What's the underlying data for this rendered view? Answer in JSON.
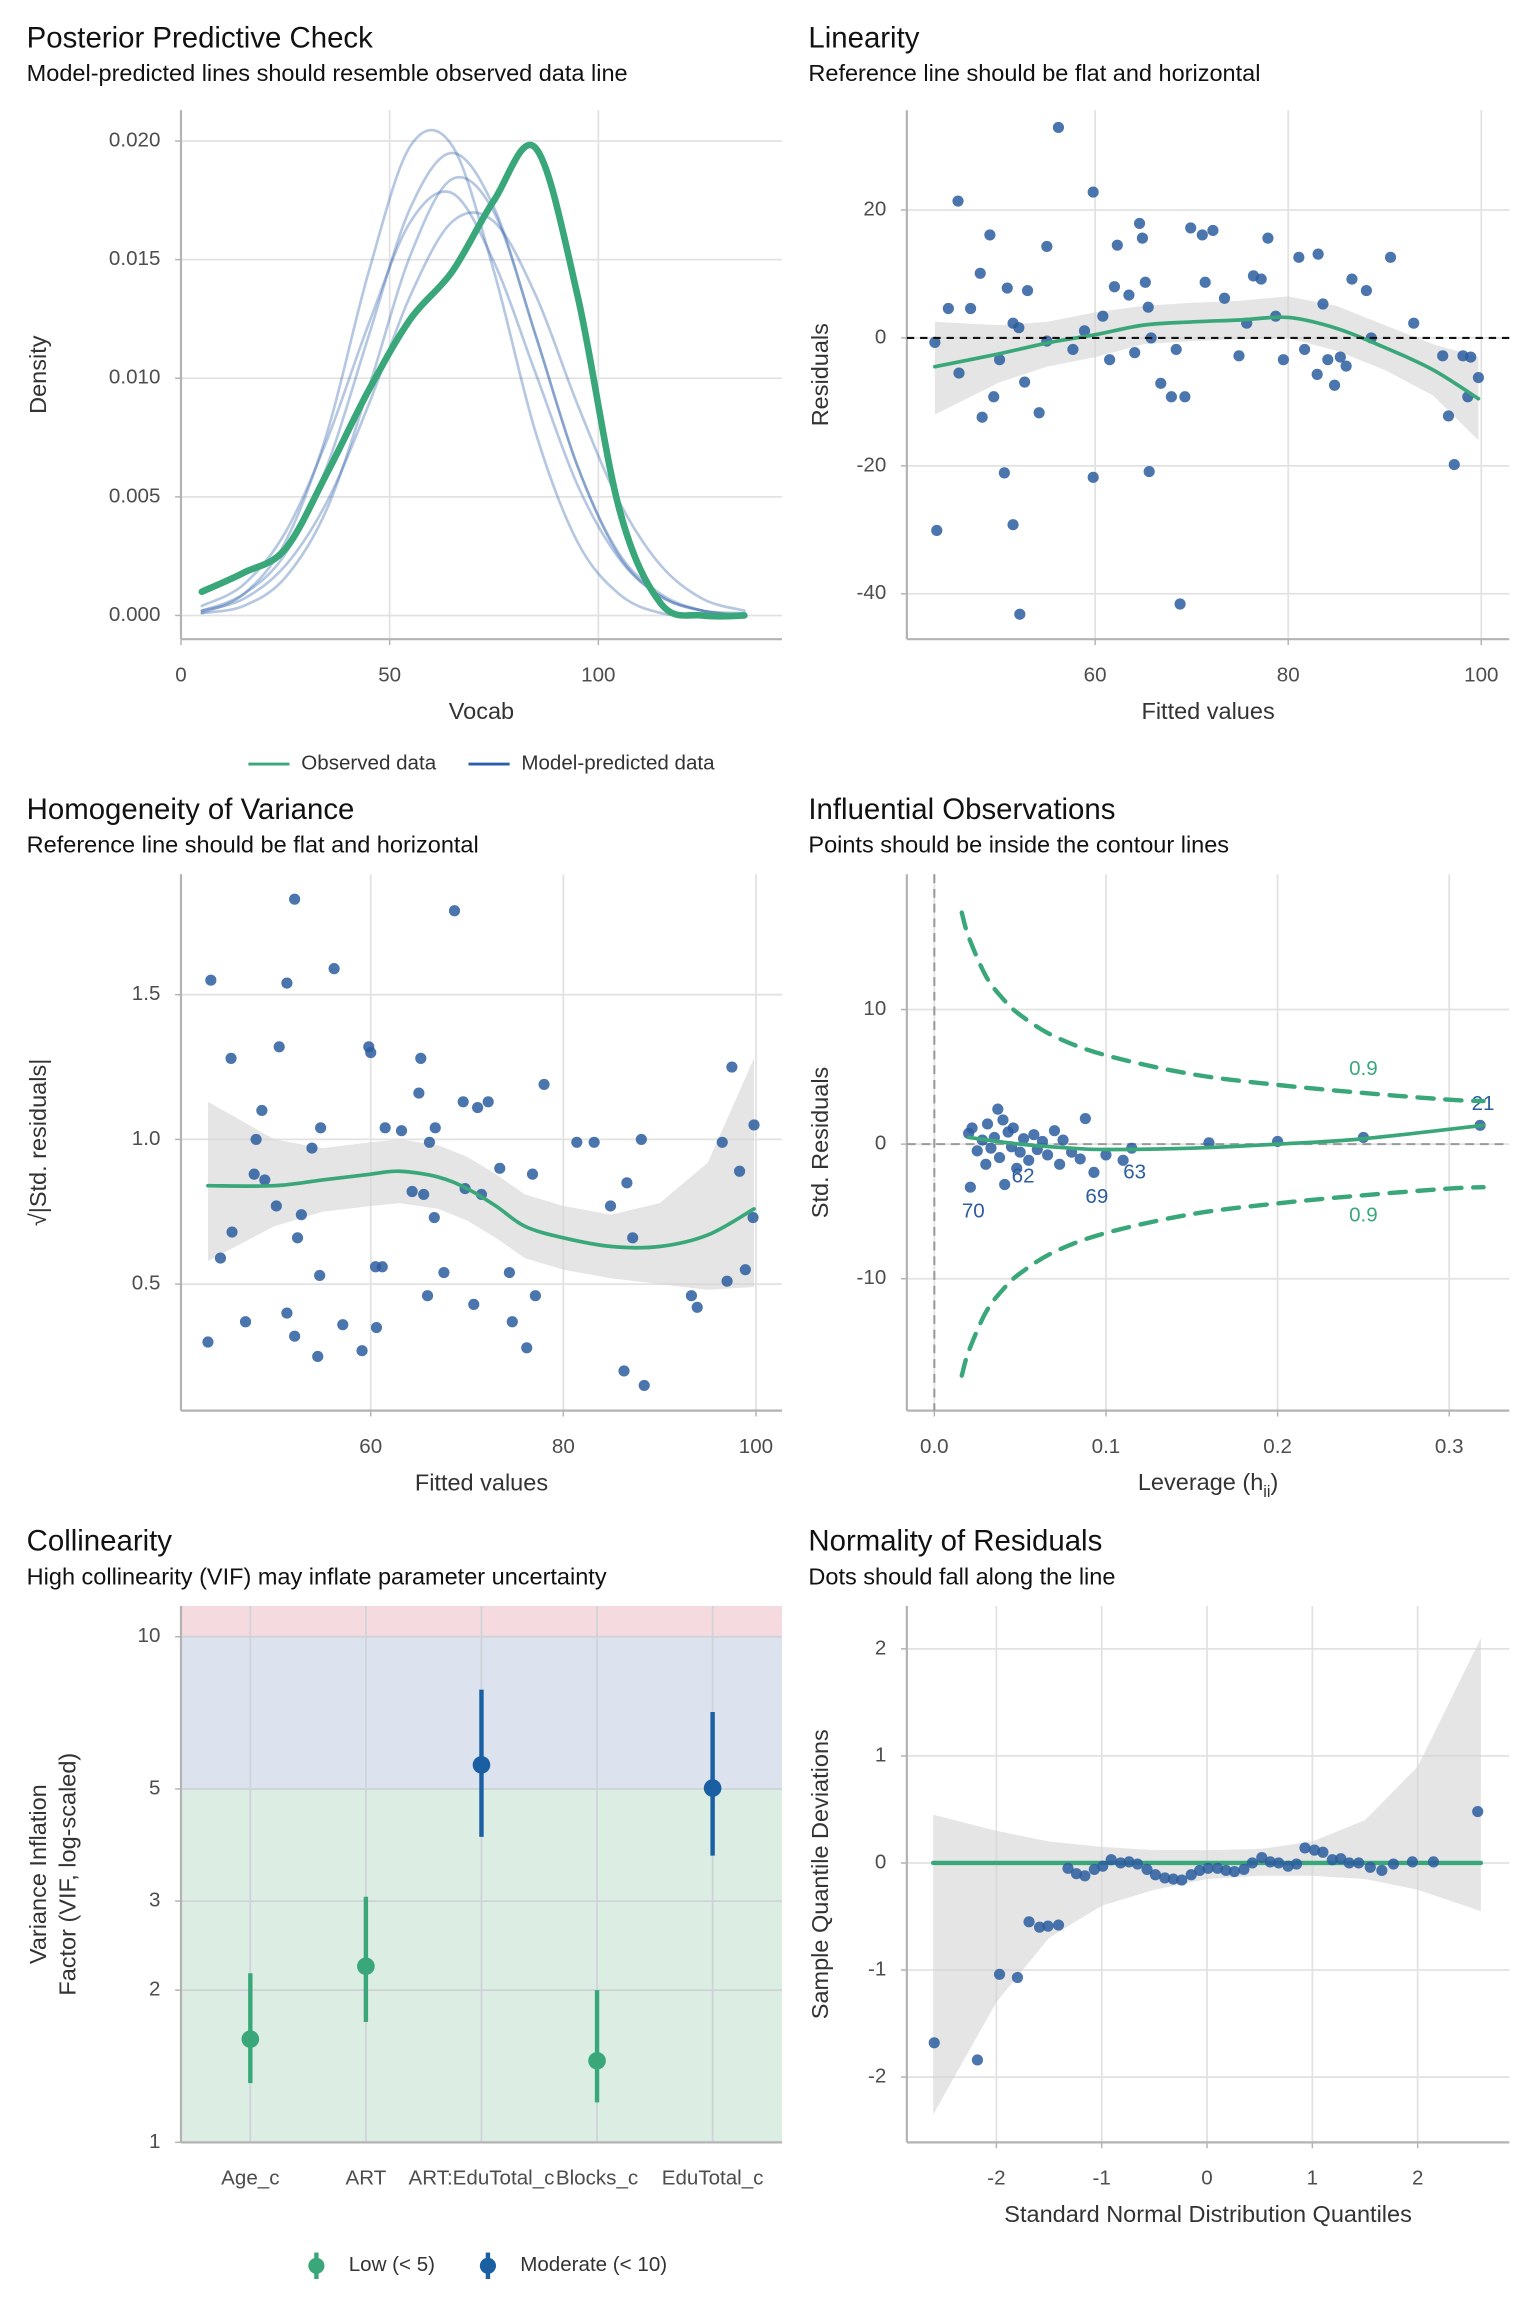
{
  "chart_data": [
    {
      "type": "density",
      "title": "Posterior Predictive Check",
      "subtitle": "Model-predicted lines should resemble observed data line",
      "x_label": "Vocab",
      "y_label": "Density",
      "xlim": [
        0,
        144
      ],
      "ylim": [
        -0.001,
        0.0213
      ],
      "xticks": [
        0,
        50,
        100
      ],
      "yticks": [
        {
          "value": 0,
          "label": "0.000"
        },
        {
          "value": 0.005,
          "label": "0.005"
        },
        {
          "value": 0.01,
          "label": "0.010"
        },
        {
          "value": 0.015,
          "label": "0.015"
        },
        {
          "value": 0.02,
          "label": "0.020"
        }
      ],
      "grid": true,
      "legend": "bottom",
      "x": [
        5,
        15,
        25,
        35,
        45,
        55,
        65,
        75,
        85,
        95,
        105,
        115,
        125,
        135
      ],
      "series": [
        {
          "name": "Observed data",
          "color": "#3aa77a",
          "values": [
            0.001,
            0.0018,
            0.0028,
            0.006,
            0.0095,
            0.0125,
            0.0145,
            0.0175,
            0.0197,
            0.0135,
            0.0045,
            0.0005,
            0,
            0
          ]
        },
        {
          "name": "Model-predicted data",
          "color": "#2b5ea8",
          "draws": [
            [
              0.0002,
              0.0009,
              0.0026,
              0.0063,
              0.0118,
              0.0172,
              0.0195,
              0.0172,
              0.0118,
              0.0063,
              0.0026,
              0.0009,
              0.0002,
              0
            ],
            [
              0.0001,
              0.0009,
              0.0031,
              0.0077,
              0.0145,
              0.0198,
              0.0198,
              0.0145,
              0.0077,
              0.0031,
              0.0009,
              0.0001,
              0,
              0
            ],
            [
              0.0002,
              0.0007,
              0.0021,
              0.0048,
              0.0089,
              0.0135,
              0.0166,
              0.0166,
              0.0135,
              0.0089,
              0.0048,
              0.0021,
              0.0007,
              0.0002
            ],
            [
              0.0001,
              0.0004,
              0.0016,
              0.0045,
              0.0096,
              0.0152,
              0.0184,
              0.017,
              0.0118,
              0.0063,
              0.0025,
              0.0008,
              0.0002,
              0
            ],
            [
              0.0004,
              0.0013,
              0.0035,
              0.0074,
              0.0123,
              0.0166,
              0.0178,
              0.0149,
              0.0102,
              0.0055,
              0.0024,
              0.0008,
              0.0002,
              0.0001
            ]
          ]
        }
      ]
    },
    {
      "type": "scatter",
      "title": "Linearity",
      "subtitle": "Reference line should be flat and horizontal",
      "x_label": "Fitted values",
      "y_label": "Residuals",
      "xlim": [
        40.5,
        102.9
      ],
      "ylim": [
        -47.1,
        35.6
      ],
      "xticks": [
        60,
        80,
        100
      ],
      "yticks": [
        -40,
        -20,
        0,
        20
      ],
      "grid": true,
      "hline": 0,
      "point_color": "#2c5d9f",
      "smooth_color": "#3aa77a",
      "x": [
        43.4,
        43.6,
        44.8,
        45.8,
        45.9,
        47.1,
        48.1,
        48.3,
        49.1,
        49.5,
        50.1,
        50.6,
        50.9,
        51.5,
        51.5,
        52.1,
        52.2,
        52.7,
        53.0,
        54.2,
        55.0,
        55.0,
        56.2,
        57.7,
        58.9,
        59.8,
        59.8,
        60.8,
        61.5,
        62.0,
        62.3,
        63.5,
        64.1,
        64.6,
        64.9,
        65.2,
        65.5,
        65.6,
        65.8,
        66.8,
        67.9,
        68.4,
        68.8,
        69.3,
        69.9,
        71.1,
        71.4,
        72.2,
        73.4,
        74.9,
        75.7,
        76.4,
        77.2,
        77.9,
        78.7,
        79.5,
        81.1,
        81.7,
        83.0,
        83.6,
        84.1,
        84.8,
        85.4,
        86.0,
        86.6,
        88.1,
        88.6,
        93.0,
        96.0,
        96.6,
        97.2,
        98.1,
        98.6,
        98.9,
        99.7,
        83.1,
        90.6
      ],
      "values": [
        -0.7,
        -30.1,
        4.6,
        21.4,
        -5.5,
        4.6,
        10.1,
        -12.4,
        16.1,
        -9.2,
        -3.4,
        -21.1,
        7.8,
        2.3,
        -29.2,
        1.6,
        -43.2,
        -6.9,
        7.4,
        -11.7,
        14.3,
        -0.5,
        32.9,
        -1.8,
        1.1,
        22.8,
        -21.8,
        3.4,
        -3.4,
        8.0,
        14.5,
        6.7,
        -2.3,
        17.9,
        15.6,
        8.7,
        4.8,
        -20.9,
        0.0,
        -7.1,
        -9.2,
        -1.8,
        -41.6,
        -9.2,
        17.2,
        16.1,
        8.7,
        16.8,
        6.2,
        -2.8,
        2.3,
        9.7,
        9.2,
        15.6,
        3.4,
        -3.4,
        12.6,
        -1.8,
        -5.7,
        5.3,
        -3.4,
        -7.4,
        -3.0,
        -4.4,
        9.2,
        7.4,
        0.0,
        2.3,
        -2.8,
        -12.2,
        -19.8,
        -2.8,
        -9.2,
        -3.0,
        -6.2,
        13.1,
        12.6
      ],
      "smooth": {
        "x": [
          43.4,
          50,
          55,
          60,
          65,
          70,
          75,
          80,
          85,
          90,
          95,
          99.7
        ],
        "values": [
          -4.5,
          -2.5,
          -0.8,
          0.5,
          2,
          2.5,
          2.8,
          3.2,
          1.5,
          -1.5,
          -5,
          -9.5
        ],
        "lower": [
          -12,
          -7,
          -4.5,
          -3,
          -1,
          -0.5,
          -0.2,
          0,
          -2,
          -5,
          -9,
          -16
        ],
        "upper": [
          2.5,
          2,
          2.5,
          4,
          5,
          5.5,
          5.8,
          6.5,
          5,
          2,
          -1,
          -3
        ]
      }
    },
    {
      "type": "scatter",
      "title": "Homogeneity of Variance",
      "subtitle": "Reference line should be flat and horizontal",
      "x_label": "Fitted values",
      "y_label": "√|Std. residuals|",
      "xlim": [
        40.3,
        102.7
      ],
      "ylim": [
        0.063,
        1.916
      ],
      "xticks": [
        60,
        80,
        100
      ],
      "yticks": [
        0.5,
        {
          "value": 1,
          "label": "1.0"
        },
        1.5
      ],
      "grid": true,
      "point_color": "#2c5d9f",
      "smooth_color": "#3aa77a",
      "x": [
        43.1,
        44.4,
        43.4,
        45.5,
        45.6,
        47.0,
        47.9,
        48.1,
        48.7,
        49.0,
        50.2,
        50.5,
        51.3,
        51.3,
        52.1,
        52.1,
        52.4,
        52.8,
        53.9,
        54.5,
        54.8,
        54.7,
        56.2,
        57.1,
        59.1,
        59.8,
        60.0,
        60.5,
        60.6,
        61.2,
        61.5,
        63.2,
        64.3,
        65.0,
        65.2,
        65.5,
        65.9,
        66.1,
        66.6,
        66.7,
        67.6,
        68.7,
        69.6,
        69.8,
        70.7,
        71.1,
        71.5,
        72.2,
        74.4,
        74.7,
        76.2,
        76.8,
        77.1,
        78.0,
        81.4,
        83.2,
        84.9,
        86.3,
        86.6,
        87.2,
        88.4,
        93.3,
        93.9,
        96.5,
        97.0,
        97.5,
        98.3,
        98.9,
        99.7,
        99.8,
        88.1,
        73.4
      ],
      "values": [
        0.3,
        0.59,
        1.55,
        1.28,
        0.68,
        0.37,
        0.88,
        1.0,
        1.1,
        0.86,
        0.77,
        1.32,
        1.54,
        0.4,
        1.83,
        0.32,
        0.66,
        0.74,
        0.97,
        0.25,
        1.04,
        0.53,
        1.59,
        0.36,
        0.27,
        1.32,
        1.3,
        0.56,
        0.35,
        0.56,
        1.04,
        1.03,
        0.82,
        1.16,
        1.28,
        0.81,
        0.46,
        0.99,
        0.73,
        1.04,
        0.54,
        1.79,
        1.13,
        0.83,
        0.43,
        1.11,
        0.81,
        1.13,
        0.54,
        0.37,
        0.28,
        0.88,
        0.46,
        1.19,
        0.99,
        0.99,
        0.77,
        0.2,
        0.85,
        0.66,
        0.15,
        0.46,
        0.42,
        0.99,
        0.51,
        1.25,
        0.89,
        0.55,
        0.73,
        1.05,
        1.0,
        0.9
      ],
      "smooth": {
        "x": [
          43.1,
          50,
          55,
          60,
          63,
          67,
          70,
          73,
          76,
          80,
          85,
          90,
          95,
          99.8
        ],
        "values": [
          0.84,
          0.84,
          0.86,
          0.88,
          0.89,
          0.87,
          0.83,
          0.77,
          0.7,
          0.66,
          0.63,
          0.63,
          0.67,
          0.76
        ],
        "lower": [
          0.58,
          0.7,
          0.75,
          0.77,
          0.78,
          0.76,
          0.72,
          0.66,
          0.59,
          0.55,
          0.52,
          0.5,
          0.48,
          0.49
        ],
        "upper": [
          1.13,
          1.0,
          0.97,
          0.99,
          1.0,
          0.98,
          0.94,
          0.88,
          0.81,
          0.77,
          0.74,
          0.78,
          0.92,
          1.28
        ]
      }
    },
    {
      "type": "influence",
      "title": "Influential Observations",
      "subtitle": "Points should be inside the contour lines",
      "x_label": [
        "Leverage (h",
        "ii",
        ")"
      ],
      "x_label_subscript": 1,
      "y_label": "Std. Residuals",
      "xlim": [
        -0.016,
        0.335
      ],
      "ylim": [
        -19.8,
        20.05
      ],
      "xticks": [
        {
          "value": 0,
          "label": "0.0"
        },
        0.1,
        0.2,
        0.3
      ],
      "yticks": [
        -10,
        0,
        10
      ],
      "grid": true,
      "hline": 0,
      "vline": 0,
      "point_color": "#2c5d9f",
      "smooth_color": "#3aa77a",
      "contour_color": "#3aa77a",
      "x": [
        0.02,
        0.021,
        0.022,
        0.025,
        0.028,
        0.03,
        0.031,
        0.033,
        0.035,
        0.037,
        0.038,
        0.04,
        0.041,
        0.043,
        0.045,
        0.046,
        0.048,
        0.05,
        0.052,
        0.055,
        0.058,
        0.06,
        0.063,
        0.066,
        0.07,
        0.073,
        0.075,
        0.08,
        0.085,
        0.088,
        0.093,
        0.1,
        0.11,
        0.115,
        0.16,
        0.2,
        0.25,
        0.318
      ],
      "values": [
        0.8,
        -3.2,
        1.2,
        -0.5,
        0.3,
        -1.5,
        1.5,
        -0.3,
        0.5,
        2.6,
        -1.0,
        1.8,
        -3.0,
        0.9,
        -0.2,
        1.2,
        -1.8,
        -0.6,
        0.4,
        -1.2,
        0.7,
        -0.4,
        0.2,
        -0.8,
        1.0,
        -1.5,
        0.3,
        -0.6,
        -1.1,
        1.9,
        -2.1,
        -0.8,
        -1.2,
        -0.3,
        0.1,
        0.2,
        0.5,
        1.4
      ],
      "labels": [
        null,
        "70",
        null,
        null,
        null,
        null,
        null,
        null,
        null,
        null,
        null,
        null,
        null,
        null,
        null,
        null,
        null,
        "62",
        null,
        null,
        null,
        null,
        null,
        null,
        null,
        null,
        null,
        null,
        null,
        null,
        "69",
        null,
        null,
        "63",
        null,
        null,
        null,
        "21"
      ],
      "smooth": {
        "x": [
          0.02,
          0.05,
          0.08,
          0.1,
          0.15,
          0.2,
          0.25,
          0.32
        ],
        "values": [
          0.5,
          0,
          -0.3,
          -0.4,
          -0.3,
          0,
          0.4,
          1.4
        ]
      },
      "contour_x": [
        0.016,
        0.02,
        0.03,
        0.04,
        0.05,
        0.07,
        0.1,
        0.15,
        0.2,
        0.25,
        0.3,
        0.32
      ],
      "contours": [
        {
          "label": "0.9",
          "values": [
            17.2,
            15.4,
            12.5,
            10.8,
            9.6,
            8.0,
            6.6,
            5.2,
            4.4,
            3.8,
            3.3,
            3.2
          ]
        },
        {
          "label": "0.9",
          "values": [
            -17.2,
            -15.4,
            -12.5,
            -10.8,
            -9.6,
            -8.0,
            -6.6,
            -5.2,
            -4.4,
            -3.8,
            -3.3,
            -3.2
          ]
        }
      ]
    },
    {
      "type": "vif",
      "title": "Collinearity",
      "subtitle": "High collinearity (VIF) may inflate parameter uncertainty",
      "y_label": [
        "Variance Inflation",
        "Factor (VIF, log-scaled)"
      ],
      "log_y": true,
      "ylim": [
        1,
        11.5
      ],
      "yticks": [
        1,
        2,
        3,
        5,
        10
      ],
      "grid": true,
      "legend": "bottom",
      "categories": [
        "Age_c",
        "ART",
        "ART:EduTotal_c",
        "Blocks_c",
        "EduTotal_c"
      ],
      "zones": [
        {
          "from": 1,
          "to": 5,
          "color": "#dcede4"
        },
        {
          "from": 5,
          "to": 10,
          "color": "#dce3ef"
        },
        {
          "from": 10,
          "to": 11.5,
          "color": "#f5dadf"
        }
      ],
      "series": [
        {
          "name": "Low (< 5)",
          "color": "#3aa77a",
          "values": [
            1.6,
            2.23,
            null,
            1.45,
            null
          ],
          "ci_low": [
            1.31,
            1.73,
            null,
            1.2,
            null
          ],
          "ci_high": [
            2.16,
            3.06,
            null,
            2.0,
            null
          ]
        },
        {
          "name": "Moderate (< 10)",
          "color": "#1b5fa3",
          "values": [
            null,
            null,
            5.58,
            null,
            5.02
          ],
          "ci_low": [
            null,
            null,
            4.02,
            null,
            3.69
          ],
          "ci_high": [
            null,
            null,
            7.86,
            null,
            7.1
          ]
        }
      ]
    },
    {
      "type": "qq",
      "title": "Normality of Residuals",
      "subtitle": "Dots should fall along the line",
      "x_label": "Standard Normal Distribution Quantiles",
      "y_label": "Sample Quantile Deviations",
      "xlim": [
        -2.85,
        2.87
      ],
      "ylim": [
        -2.61,
        2.4
      ],
      "xticks": [
        -2,
        -1,
        0,
        1,
        2
      ],
      "yticks": [
        -2,
        -1,
        0,
        1,
        2
      ],
      "grid": true,
      "point_color": "#2c5d9f",
      "line_color": "#3aa77a",
      "x": [
        -2.59,
        -2.18,
        -1.97,
        -1.8,
        -1.69,
        -1.59,
        -1.51,
        -1.41,
        -1.32,
        -1.24,
        -1.16,
        -1.07,
        -0.99,
        -0.91,
        -0.82,
        -0.74,
        -0.66,
        -0.57,
        -0.49,
        -0.4,
        -0.32,
        -0.24,
        -0.15,
        -0.07,
        0.01,
        0.1,
        0.18,
        0.26,
        0.35,
        0.43,
        0.52,
        0.6,
        0.68,
        0.77,
        0.85,
        0.93,
        1.02,
        1.1,
        1.19,
        1.27,
        1.35,
        1.44,
        1.55,
        1.66,
        1.77,
        1.95,
        2.15,
        2.57
      ],
      "values": [
        -1.68,
        -1.84,
        -1.04,
        -1.07,
        -0.55,
        -0.6,
        -0.59,
        -0.58,
        -0.05,
        -0.1,
        -0.12,
        -0.06,
        -0.03,
        0.03,
        0.0,
        0.01,
        -0.01,
        -0.06,
        -0.11,
        -0.14,
        -0.15,
        -0.16,
        -0.11,
        -0.07,
        -0.05,
        -0.05,
        -0.07,
        -0.08,
        -0.06,
        0.0,
        0.05,
        0.01,
        0.0,
        -0.03,
        -0.01,
        0.14,
        0.12,
        0.1,
        0.03,
        0.04,
        0.0,
        0.0,
        -0.04,
        -0.07,
        -0.01,
        0.01,
        0.01,
        0.48
      ],
      "band": {
        "x": [
          -2.6,
          -2,
          -1.5,
          -1,
          -0.5,
          0,
          0.5,
          1,
          1.5,
          2,
          2.6
        ],
        "lower": [
          -2.35,
          -1.3,
          -0.7,
          -0.4,
          -0.25,
          -0.15,
          -0.12,
          -0.12,
          -0.15,
          -0.25,
          -0.45
        ],
        "upper": [
          0.45,
          0.3,
          0.2,
          0.15,
          0.12,
          0.12,
          0.13,
          0.2,
          0.4,
          0.9,
          2.1
        ]
      },
      "line": {
        "x": [
          -2.6,
          2.6
        ],
        "values": [
          0,
          0
        ]
      }
    }
  ]
}
